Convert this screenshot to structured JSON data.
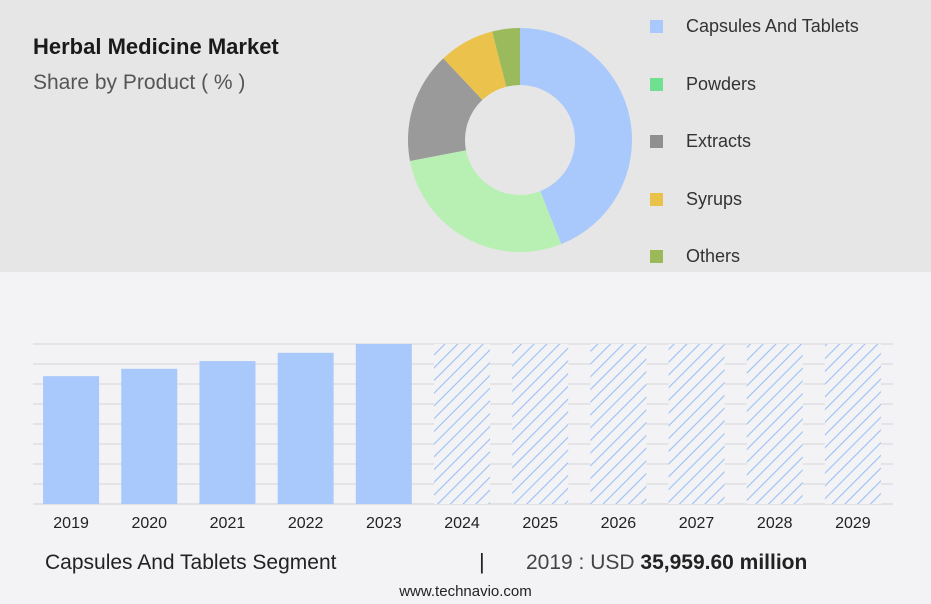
{
  "header": {
    "title": "Herbal Medicine Market",
    "subtitle": "Share by Product ( % )"
  },
  "colors": {
    "capsules": "#a9c8fb",
    "powders": "#b8f0b4",
    "extracts": "#9a9a9a",
    "syrups": "#ebc24c",
    "others": "#9bba5c",
    "forecast_hatch": "#9cc0f5"
  },
  "legend": {
    "items": [
      {
        "label": "Capsules And Tablets",
        "color": "#a9c8fb"
      },
      {
        "label": "Powders",
        "color": "#6fe08f"
      },
      {
        "label": "Extracts",
        "color": "#8f8f8f"
      },
      {
        "label": "Syrups",
        "color": "#e9c24a"
      },
      {
        "label": "Others",
        "color": "#9cb95a"
      }
    ]
  },
  "chart_data": [
    {
      "type": "pie",
      "style": "donut",
      "categories": [
        "Capsules And Tablets",
        "Powders",
        "Extracts",
        "Syrups",
        "Others"
      ],
      "values": [
        44,
        28,
        16,
        8,
        4
      ],
      "unit": "%"
    },
    {
      "type": "bar",
      "categories": [
        "2019",
        "2020",
        "2021",
        "2022",
        "2023",
        "2024",
        "2025",
        "2026",
        "2027",
        "2028",
        "2029"
      ],
      "values": [
        35959.6,
        38030,
        40200,
        42530,
        44990,
        44990,
        44990,
        44990,
        44990,
        44990,
        44990
      ],
      "forecast_from": "2024",
      "ylim": [
        0,
        45000
      ],
      "grid": true,
      "ylabel": "",
      "xlabel": ""
    }
  ],
  "footer": {
    "segment_label": "Capsules And Tablets Segment",
    "separator": "|",
    "value_prefix": "2019 : USD",
    "value": "35,959.60 million"
  },
  "source": "www.technavio.com"
}
